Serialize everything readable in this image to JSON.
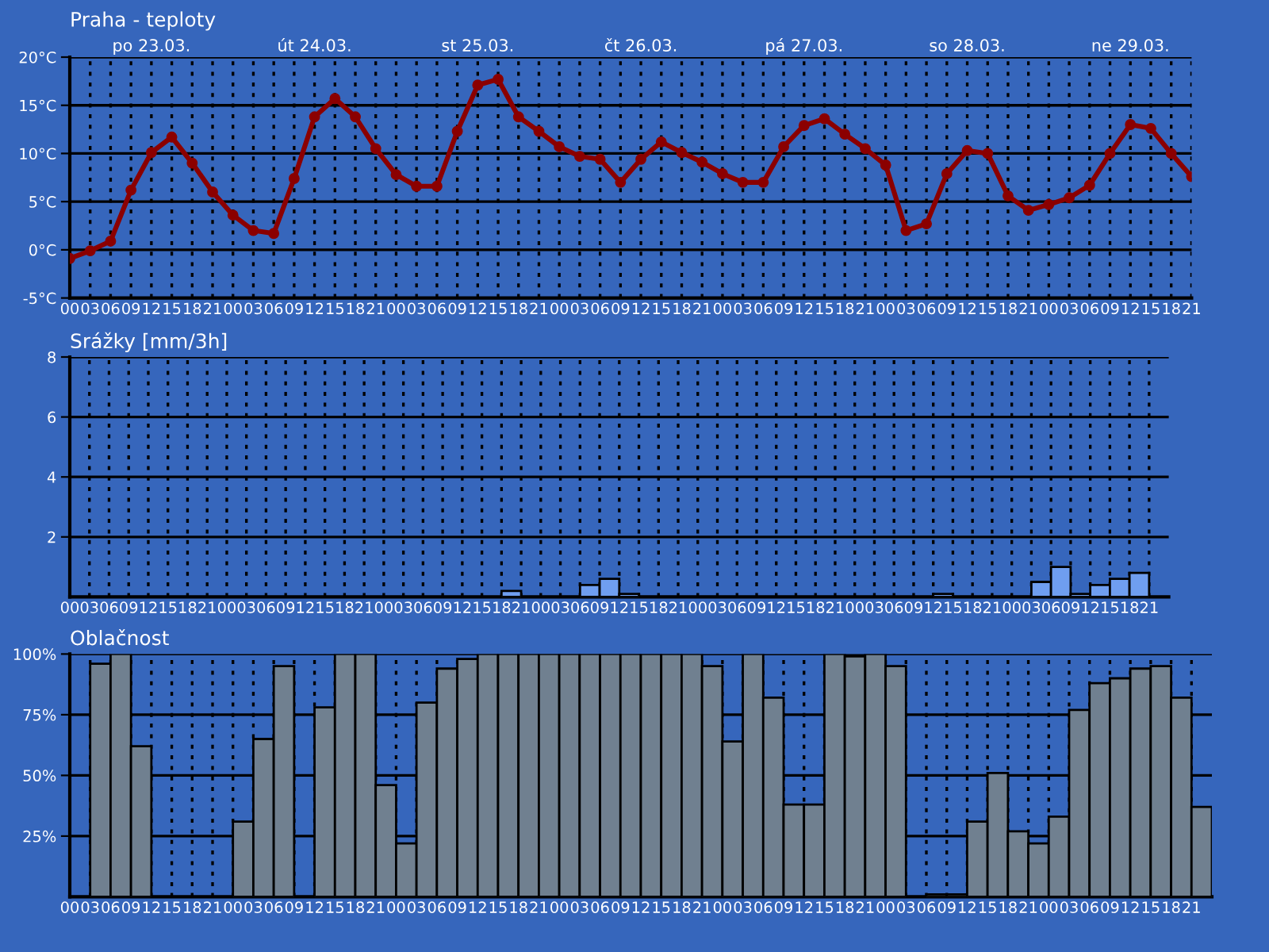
{
  "chart_data": [
    {
      "type": "line",
      "title": "Praha - teploty",
      "categories": [
        "00",
        "03",
        "06",
        "09",
        "12",
        "15",
        "18",
        "21",
        "00",
        "03",
        "06",
        "09",
        "12",
        "15",
        "18",
        "21",
        "00",
        "03",
        "06",
        "09",
        "12",
        "15",
        "18",
        "21",
        "00",
        "03",
        "06",
        "09",
        "12",
        "15",
        "18",
        "21",
        "00",
        "03",
        "06",
        "09",
        "12",
        "15",
        "18",
        "21",
        "00",
        "03",
        "06",
        "09",
        "12",
        "15",
        "18",
        "21",
        "00",
        "03",
        "06",
        "09",
        "12",
        "15",
        "18",
        "21"
      ],
      "values": [
        -0.9,
        -0.1,
        0.9,
        6.2,
        10.1,
        11.7,
        9.0,
        6.0,
        3.6,
        2.0,
        1.7,
        7.4,
        13.8,
        15.7,
        13.8,
        10.5,
        7.8,
        6.6,
        6.6,
        12.3,
        17.1,
        17.7,
        13.8,
        12.3,
        10.7,
        9.7,
        9.4,
        7.0,
        9.4,
        11.2,
        10.1,
        9.1,
        7.9,
        7.0,
        7.0,
        10.7,
        12.9,
        13.6,
        12.0,
        10.5,
        8.8,
        2.0,
        2.7,
        7.9,
        10.3,
        10.0,
        5.6,
        4.1,
        4.7,
        5.4,
        6.7,
        10.0,
        13.0,
        12.6,
        10.0,
        7.6
      ],
      "color": "#8b0000",
      "marker": "circle",
      "line_style": "solid",
      "ylim": [
        -5,
        20
      ],
      "yticks": [
        {
          "value": -5,
          "label": "-5°C"
        },
        {
          "value": 0,
          "label": "0°C"
        },
        {
          "value": 5,
          "label": "5°C"
        },
        {
          "value": 10,
          "label": "10°C"
        },
        {
          "value": 15,
          "label": "15°C"
        },
        {
          "value": 20,
          "label": "20°C"
        }
      ],
      "grid": true,
      "annotations": [
        "po 23.03.",
        "út 24.03.",
        "st 25.03.",
        "čt 26.03.",
        "pá 27.03.",
        "so 28.03.",
        "ne 29.03."
      ]
    },
    {
      "type": "bar",
      "title": "Srážky [mm/3h]",
      "categories": [
        "00",
        "03",
        "06",
        "09",
        "12",
        "15",
        "18",
        "21",
        "00",
        "03",
        "06",
        "09",
        "12",
        "15",
        "18",
        "21",
        "00",
        "03",
        "06",
        "09",
        "12",
        "15",
        "18",
        "21",
        "00",
        "03",
        "06",
        "09",
        "12",
        "15",
        "18",
        "21",
        "00",
        "03",
        "06",
        "09",
        "12",
        "15",
        "18",
        "21",
        "00",
        "03",
        "06",
        "09",
        "12",
        "15",
        "18",
        "21",
        "00",
        "03",
        "06",
        "09",
        "12",
        "15",
        "18",
        "21"
      ],
      "values": [
        0,
        0,
        0,
        0,
        0,
        0,
        0,
        0,
        0,
        0,
        0,
        0,
        0,
        0,
        0,
        0,
        0,
        0,
        0,
        0,
        0,
        0,
        0.2,
        0,
        0,
        0,
        0.4,
        0.6,
        0.1,
        0,
        0,
        0,
        0,
        0,
        0,
        0,
        0,
        0,
        0,
        0,
        0,
        0,
        0,
        0,
        0.1,
        0,
        0,
        0,
        0,
        0.5,
        1.0,
        0.1,
        0.4,
        0.6,
        0.8,
        0
      ],
      "color": "#6f9ef0",
      "ylim": [
        0,
        8
      ],
      "yticks": [
        2,
        4,
        6,
        8
      ],
      "grid": true
    },
    {
      "type": "bar",
      "title": "Oblačnost",
      "categories": [
        "00",
        "03",
        "06",
        "09",
        "12",
        "15",
        "18",
        "21",
        "00",
        "03",
        "06",
        "09",
        "12",
        "15",
        "18",
        "21",
        "00",
        "03",
        "06",
        "09",
        "12",
        "15",
        "18",
        "21",
        "00",
        "03",
        "06",
        "09",
        "12",
        "15",
        "18",
        "21",
        "00",
        "03",
        "06",
        "09",
        "12",
        "15",
        "18",
        "21",
        "00",
        "03",
        "06",
        "09",
        "12",
        "15",
        "18",
        "21",
        "00",
        "03",
        "06",
        "09",
        "12",
        "15",
        "18",
        "21"
      ],
      "values": [
        0,
        96,
        100,
        62,
        0,
        0,
        0,
        0,
        31,
        65,
        95,
        0,
        78,
        100,
        100,
        46,
        22,
        80,
        94,
        98,
        100,
        100,
        100,
        100,
        100,
        100,
        100,
        100,
        100,
        100,
        100,
        95,
        64,
        100,
        82,
        38,
        38,
        100,
        99,
        100,
        95,
        0,
        1,
        1,
        31,
        51,
        27,
        22,
        33,
        77,
        88,
        90,
        94,
        95,
        82,
        37
      ],
      "color": "#708090",
      "ylim": [
        0,
        100
      ],
      "yticks": [
        {
          "value": 25,
          "label": "25%"
        },
        {
          "value": 50,
          "label": "50%"
        },
        {
          "value": 75,
          "label": "75%"
        },
        {
          "value": 100,
          "label": "100%"
        }
      ],
      "grid": true
    }
  ]
}
